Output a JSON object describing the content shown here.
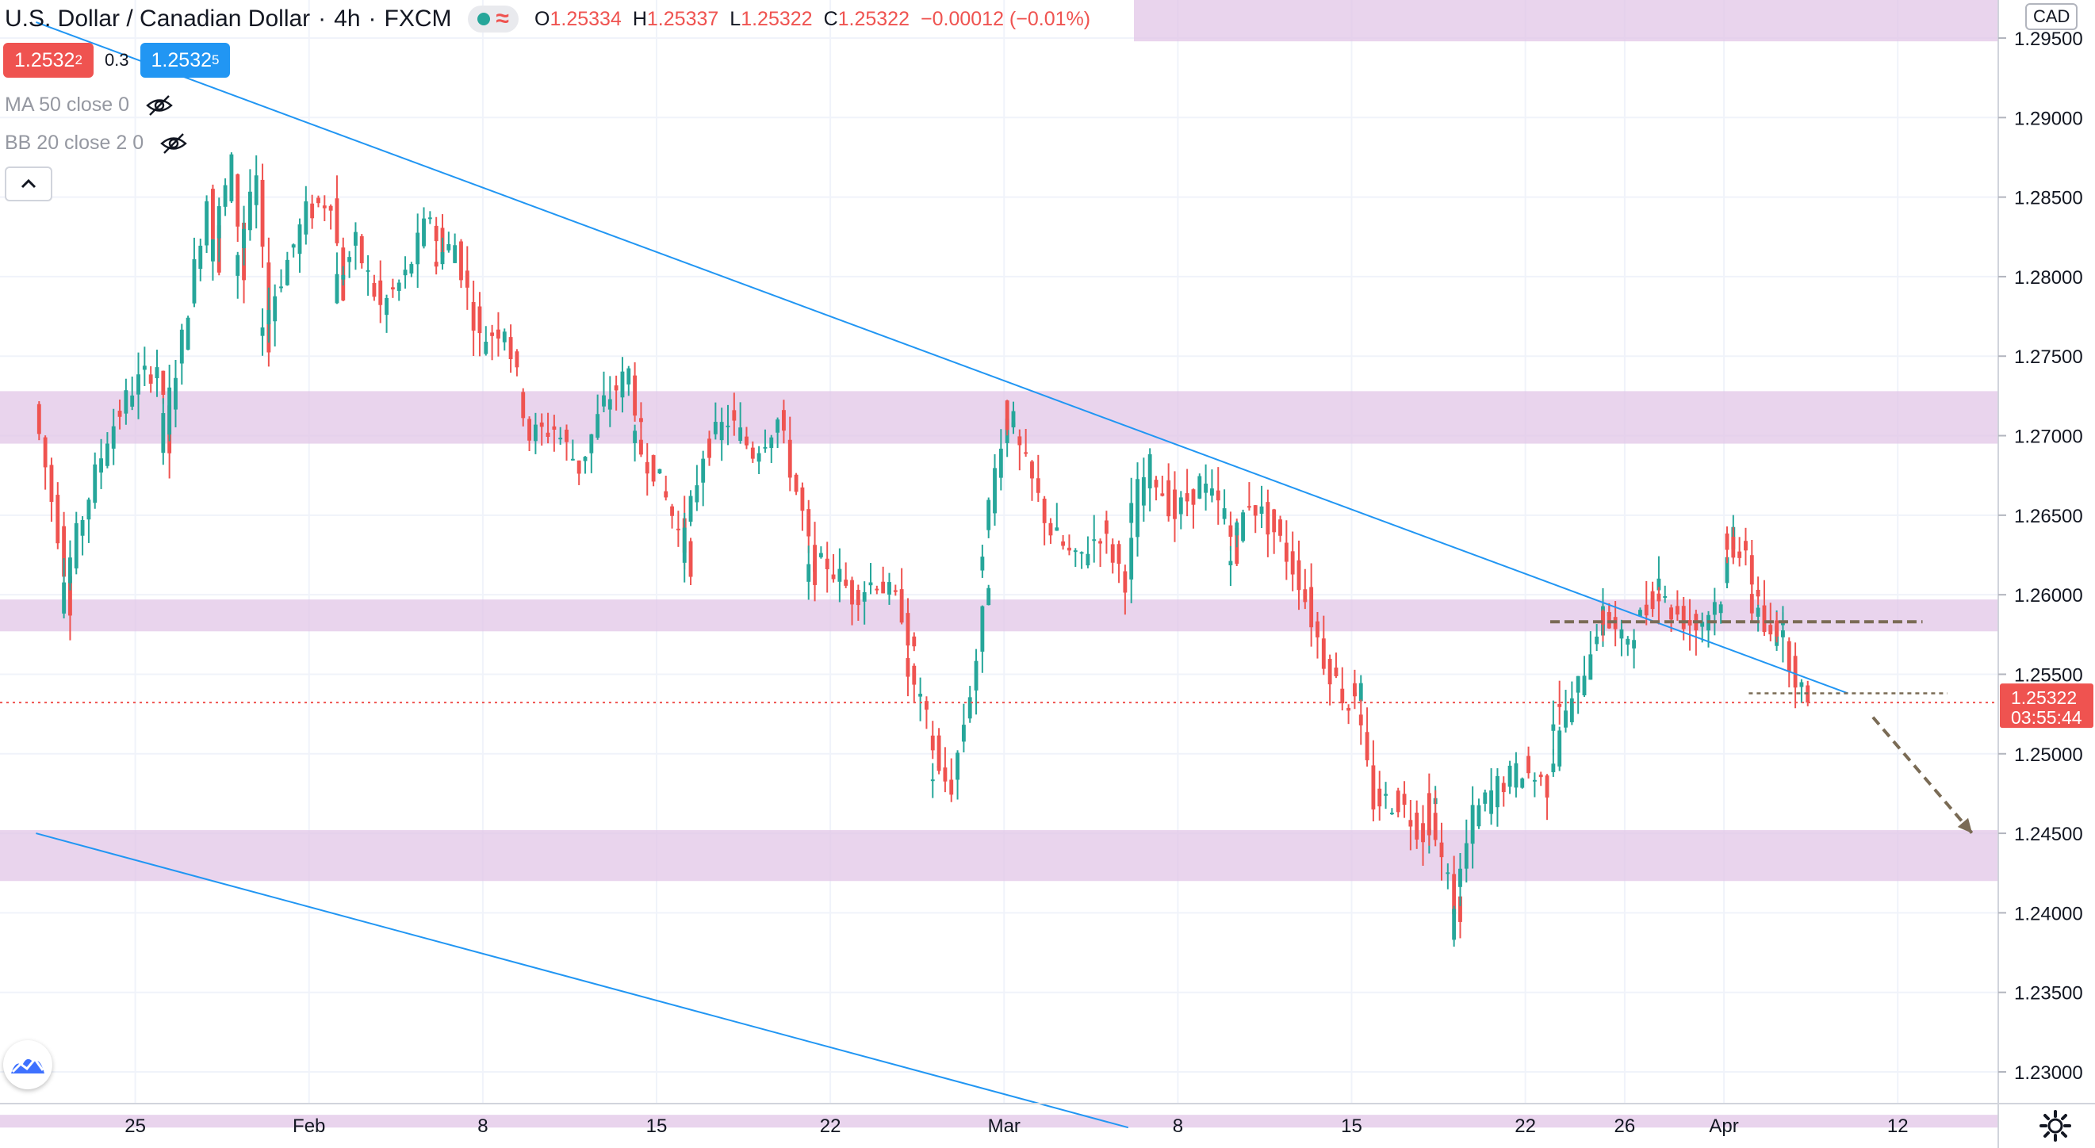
{
  "header": {
    "symbol": "U.S. Dollar / Canadian Dollar",
    "interval": "4h",
    "exchange": "FXCM",
    "ohlc": [
      {
        "label": "O",
        "value": "1.25334"
      },
      {
        "label": "H",
        "value": "1.25337"
      },
      {
        "label": "L",
        "value": "1.25322"
      },
      {
        "label": "C",
        "value": "1.25322"
      },
      {
        "label": "",
        "value": "−0.00012 (−0.01%)"
      }
    ]
  },
  "trade": {
    "sell_price": "1.2532",
    "sell_price_sup": "2",
    "spread": "0.3",
    "buy_price": "1.2532",
    "buy_price_sup": "5"
  },
  "indicators": [
    {
      "label": "MA 50 close 0"
    },
    {
      "label": "BB 20 close 2 0"
    }
  ],
  "axis": {
    "currency": "CAD",
    "current_price": "1.25322",
    "countdown": "03:55:44"
  },
  "colors": {
    "up": "#26a69a",
    "down": "#ef5350",
    "zone": "#e1c6e7",
    "trendline": "#2196f3",
    "annotation": "#7a6b55",
    "price_line": "#ef5350"
  },
  "icons": {
    "status": "market-open-dot",
    "eye": "eye-hidden-icon",
    "collapse": "chevron-up-icon",
    "logo": "tradingview-logo-icon",
    "settings": "gear-icon"
  },
  "chart_data": {
    "type": "candlestick",
    "title": "U.S. Dollar / Canadian Dollar",
    "ylim": [
      1.2265,
      1.2965
    ],
    "yticks": [
      "1.29500",
      "1.29000",
      "1.28500",
      "1.28000",
      "1.27500",
      "1.27000",
      "1.26500",
      "1.26000",
      "1.25500",
      "1.25000",
      "1.24500",
      "1.24000",
      "1.23500",
      "1.23000"
    ],
    "xticks": [
      {
        "label": "25",
        "day": 1
      },
      {
        "label": "Feb",
        "day": 8
      },
      {
        "label": "8",
        "day": 15
      },
      {
        "label": "15",
        "day": 22
      },
      {
        "label": "22",
        "day": 29
      },
      {
        "label": "Mar",
        "day": 36
      },
      {
        "label": "8",
        "day": 43
      },
      {
        "label": "15",
        "day": 50
      },
      {
        "label": "22",
        "day": 57
      },
      {
        "label": "26",
        "day": 61
      },
      {
        "label": "Apr",
        "day": 65
      },
      {
        "label": "12",
        "day": 72
      }
    ],
    "anchors": [
      [
        "Jan 21",
        1.272
      ],
      [
        "Jan 22",
        1.264
      ],
      [
        "Jan 22",
        1.2595
      ],
      [
        "Jan 23",
        1.265
      ],
      [
        "Jan 24",
        1.27
      ],
      [
        "Jan 25",
        1.273
      ],
      [
        "Jan 26",
        1.2745
      ],
      [
        "Jan 26",
        1.269
      ],
      [
        "Jan 27",
        1.276
      ],
      [
        "Jan 28",
        1.285
      ],
      [
        "Jan 28",
        1.281
      ],
      [
        "Jan 29",
        1.287
      ],
      [
        "Jan 29",
        1.28
      ],
      [
        "Jan 30",
        1.286
      ],
      [
        "Jan 30",
        1.276
      ],
      [
        "Jan 31",
        1.28
      ],
      [
        "Feb 1",
        1.284
      ],
      [
        "Feb 2",
        1.285
      ],
      [
        "Feb 2",
        1.279
      ],
      [
        "Feb 3",
        1.282
      ],
      [
        "Feb 4",
        1.278
      ],
      [
        "Feb 5",
        1.28
      ],
      [
        "Feb 6",
        1.284
      ],
      [
        "Feb 6",
        1.281
      ],
      [
        "Feb 7",
        1.282
      ],
      [
        "Feb 8",
        1.276
      ],
      [
        "Feb 9",
        1.277
      ],
      [
        "Feb 10",
        1.27
      ],
      [
        "Feb 11",
        1.2705
      ],
      [
        "Feb 12",
        1.268
      ],
      [
        "Feb 13",
        1.272
      ],
      [
        "Feb 14",
        1.274
      ],
      [
        "Feb 14",
        1.27
      ],
      [
        "Feb 15",
        1.268
      ],
      [
        "Feb 16",
        1.264
      ],
      [
        "Feb 16",
        1.262
      ],
      [
        "Feb 17",
        1.269
      ],
      [
        "Feb 18",
        1.271
      ],
      [
        "Feb 19",
        1.269
      ],
      [
        "Feb 20",
        1.271
      ],
      [
        "Feb 21",
        1.265
      ],
      [
        "Feb 21",
        1.261
      ],
      [
        "Feb 22",
        1.262
      ],
      [
        "Feb 23",
        1.26
      ],
      [
        "Feb 24",
        1.261
      ],
      [
        "Feb 25",
        1.259
      ],
      [
        "Feb 25",
        1.256
      ],
      [
        "Feb 26",
        1.252
      ],
      [
        "Feb 26",
        1.249
      ],
      [
        "Feb 27",
        1.248
      ],
      [
        "Feb 28",
        1.256
      ],
      [
        "Feb 28",
        1.261
      ],
      [
        "Mar 1",
        1.27
      ],
      [
        "Mar 1",
        1.272
      ],
      [
        "Mar 2",
        1.268
      ],
      [
        "Mar 3",
        1.264
      ],
      [
        "Mar 4",
        1.262
      ],
      [
        "Mar 5",
        1.264
      ],
      [
        "Mar 6",
        1.261
      ],
      [
        "Mar 6",
        1.265
      ],
      [
        "Mar 7",
        1.268
      ],
      [
        "Mar 8",
        1.265
      ],
      [
        "Mar 9",
        1.267
      ],
      [
        "Mar 10",
        1.265
      ],
      [
        "Mar 10",
        1.262
      ],
      [
        "Mar 11",
        1.266
      ],
      [
        "Mar 12",
        1.264
      ],
      [
        "Mar 13",
        1.261
      ],
      [
        "Mar 14",
        1.256
      ],
      [
        "Mar 15",
        1.253
      ],
      [
        "Mar 15",
        1.255
      ],
      [
        "Mar 16",
        1.247
      ],
      [
        "Mar 17",
        1.247
      ],
      [
        "Mar 18",
        1.245
      ],
      [
        "Mar 18",
        1.247
      ],
      [
        "Mar 19",
        1.242
      ],
      [
        "Mar 19",
        1.239
      ],
      [
        "Mar 20",
        1.246
      ],
      [
        "Mar 21",
        1.248
      ],
      [
        "Mar 22",
        1.249
      ],
      [
        "Mar 23",
        1.248
      ],
      [
        "Mar 23",
        1.252
      ],
      [
        "Mar 24",
        1.253
      ],
      [
        "Mar 25",
        1.258
      ],
      [
        "Mar 25",
        1.259
      ],
      [
        "Mar 26",
        1.257
      ],
      [
        "Mar 27",
        1.259
      ],
      [
        "Mar 27",
        1.261
      ],
      [
        "Mar 28",
        1.259
      ],
      [
        "Mar 29",
        1.258
      ],
      [
        "Mar 30",
        1.26
      ],
      [
        "Mar 30",
        1.264
      ],
      [
        "Mar 31",
        1.262
      ],
      [
        "Mar 31",
        1.26
      ],
      [
        "Apr 1",
        1.257
      ],
      [
        "Apr 1",
        1.259
      ],
      [
        "Apr 2",
        1.255
      ],
      [
        "Apr 2",
        1.2532
      ]
    ],
    "bands": [
      {
        "from": 1.2695,
        "to": 1.2728
      },
      {
        "from": 1.2577,
        "to": 1.2597
      },
      {
        "from": 1.242,
        "to": 1.2452
      },
      {
        "from": 1.2265,
        "to": 1.2273
      }
    ],
    "header_band": {
      "from": 1.295,
      "to": 1.2972
    },
    "trendlines": [
      {
        "start": [
          "Jan 21",
          1.296
        ],
        "end": [
          "Apr 4",
          1.2538
        ]
      },
      {
        "start": [
          "Jan 21",
          1.245
        ],
        "end": [
          "Mar 6",
          1.2265
        ]
      }
    ],
    "levels": [
      {
        "value": 1.2583,
        "from": "Mar 23",
        "to": "Apr 7",
        "style": "dashed"
      },
      {
        "value": 1.2538,
        "from": "Mar 31",
        "to": "Apr 8",
        "style": "dotted"
      }
    ],
    "arrow": {
      "start": [
        "Apr 5",
        1.2523
      ],
      "end": [
        "Apr 9",
        1.245
      ]
    },
    "last_price": 1.25322
  }
}
